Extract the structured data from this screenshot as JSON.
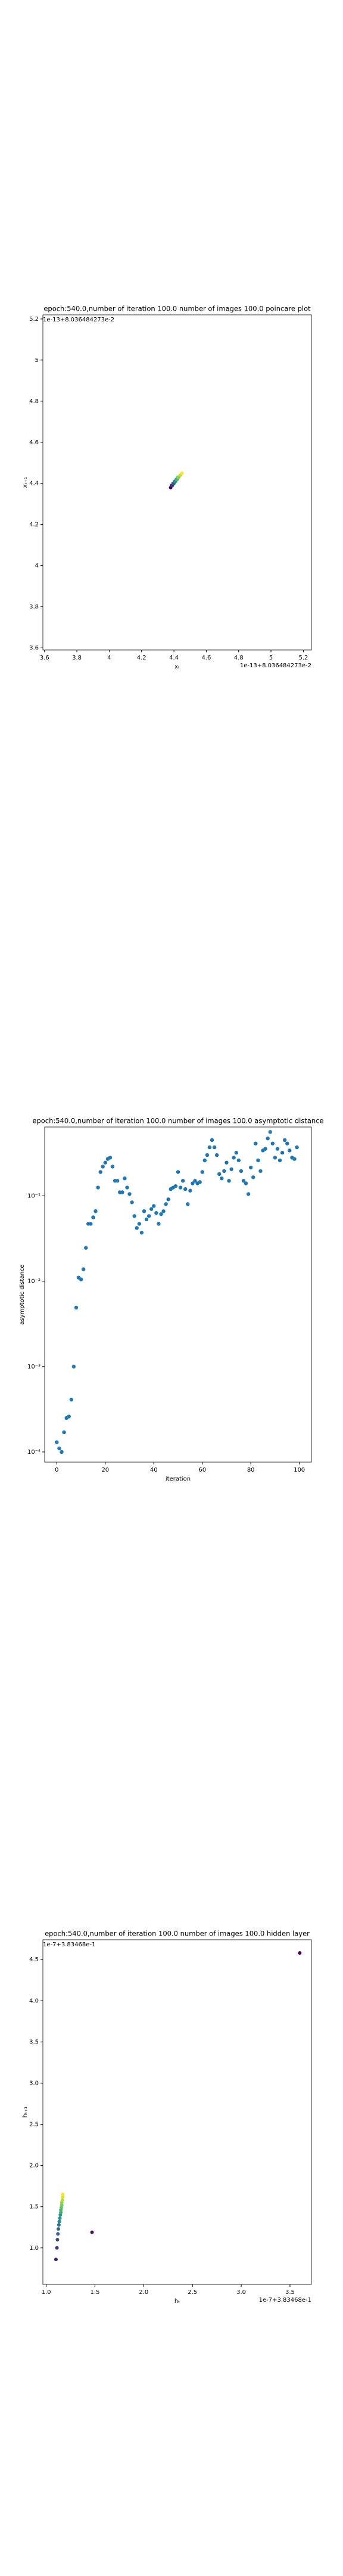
{
  "chart_data": [
    {
      "type": "scatter",
      "title": "epoch:540.0,number of iteration 100.0 number of images 100.0 poincare plot",
      "xlabel": "xₜ",
      "ylabel": "xₜ₊₁",
      "x_offset": "1e-13+8.036484273e-2",
      "y_offset": "1e-13+8.036484273e-2",
      "x": [
        4.38,
        4.385,
        4.39,
        4.395,
        4.4,
        4.405,
        4.41,
        4.415,
        4.42,
        4.425,
        4.43,
        4.44,
        4.45
      ],
      "values": [
        4.38,
        4.39,
        4.39,
        4.4,
        4.4,
        4.41,
        4.41,
        4.42,
        4.42,
        4.43,
        4.43,
        4.44,
        4.45
      ],
      "colormap": "viridis",
      "xlim": [
        3.59,
        5.25
      ],
      "ylim": [
        3.59,
        5.22
      ],
      "xticks": [
        3.6,
        3.8,
        4.0,
        4.2,
        4.4,
        4.6,
        4.8,
        5.0,
        5.2
      ],
      "yticks": [
        3.6,
        3.8,
        4.0,
        4.2,
        4.4,
        4.6,
        4.8,
        5.0,
        5.2
      ]
    },
    {
      "type": "scatter",
      "title": "epoch:540.0,number of iteration 100.0  number of images 100.0 asymptotic distance",
      "xlabel": "iteration",
      "ylabel": "asymptotic distance",
      "x": [
        0,
        1,
        2,
        3,
        4,
        5,
        6,
        7,
        8,
        9,
        10,
        11,
        12,
        13,
        14,
        15,
        16,
        17,
        18,
        19,
        20,
        21,
        22,
        23,
        24,
        25,
        26,
        27,
        28,
        29,
        30,
        31,
        32,
        33,
        34,
        35,
        36,
        37,
        38,
        39,
        40,
        41,
        42,
        43,
        44,
        45,
        46,
        47,
        48,
        49,
        50,
        51,
        52,
        53,
        54,
        55,
        56,
        57,
        58,
        59,
        60,
        61,
        62,
        63,
        64,
        65,
        66,
        67,
        68,
        69,
        70,
        71,
        72,
        73,
        74,
        75,
        76,
        77,
        78,
        79,
        80,
        81,
        82,
        83,
        84,
        85,
        86,
        87,
        88,
        89,
        90,
        91,
        92,
        93,
        94,
        95,
        96,
        97,
        98,
        99
      ],
      "values": [
        0.00013,
        0.00011,
        0.0001,
        0.00017,
        0.00025,
        0.00026,
        0.00041,
        0.001,
        0.0049,
        0.011,
        0.0105,
        0.0138,
        0.0246,
        0.047,
        0.047,
        0.056,
        0.066,
        0.125,
        0.19,
        0.22,
        0.245,
        0.27,
        0.28,
        0.22,
        0.15,
        0.15,
        0.11,
        0.11,
        0.16,
        0.125,
        0.105,
        0.084,
        0.058,
        0.042,
        0.047,
        0.037,
        0.066,
        0.053,
        0.058,
        0.07,
        0.076,
        0.063,
        0.047,
        0.061,
        0.066,
        0.08,
        0.091,
        0.12,
        0.125,
        0.13,
        0.19,
        0.125,
        0.15,
        0.12,
        0.08,
        0.115,
        0.14,
        0.15,
        0.14,
        0.145,
        0.19,
        0.26,
        0.3,
        0.37,
        0.45,
        0.37,
        0.3,
        0.18,
        0.16,
        0.195,
        0.245,
        0.15,
        0.205,
        0.28,
        0.32,
        0.26,
        0.195,
        0.15,
        0.14,
        0.105,
        0.215,
        0.165,
        0.41,
        0.26,
        0.195,
        0.34,
        0.355,
        0.47,
        0.56,
        0.41,
        0.28,
        0.355,
        0.26,
        0.32,
        0.45,
        0.41,
        0.34,
        0.28,
        0.27,
        0.37
      ],
      "color": "#1f77b4",
      "log_y": true,
      "xlim": [
        -5,
        105
      ],
      "ylim": [
        7.6e-05,
        0.64
      ],
      "xticks": [
        0,
        20,
        40,
        60,
        80,
        100
      ],
      "yticks": [
        {
          "value": 0.0001,
          "label": "10⁻⁴"
        },
        {
          "value": 0.001,
          "label": "10⁻³"
        },
        {
          "value": 0.01,
          "label": "10⁻²"
        },
        {
          "value": 0.1,
          "label": "10⁻¹"
        }
      ]
    },
    {
      "type": "scatter",
      "title": "epoch:540.0,number of iteration 100.0  number of images 100.0 hidden layer",
      "xlabel": "hₜ",
      "ylabel": "hₜ₊₁",
      "x_offset": "1e-7+3.83468e-1",
      "y_offset": "1e-7+3.83468e-1",
      "x": [
        3.6,
        1.47,
        1.1,
        1.11,
        1.115,
        1.12,
        1.125,
        1.13,
        1.135,
        1.14,
        1.145,
        1.15,
        1.15,
        1.155,
        1.16,
        1.16,
        1.165,
        1.17,
        1.17
      ],
      "values": [
        4.58,
        1.19,
        0.86,
        1.0,
        1.1,
        1.17,
        1.23,
        1.28,
        1.32,
        1.36,
        1.4,
        1.43,
        1.46,
        1.49,
        1.52,
        1.55,
        1.58,
        1.62,
        1.65
      ],
      "colormap": "viridis",
      "xlim": [
        0.966,
        3.72
      ],
      "ylim": [
        0.557,
        4.74
      ],
      "xticks": [
        {
          "value": 1,
          "label": "1.0"
        },
        1.5,
        {
          "value": 2,
          "label": "2.0"
        },
        2.5,
        {
          "value": 3,
          "label": "3.0"
        },
        3.5
      ],
      "yticks": [
        {
          "value": 1,
          "label": "1.0"
        },
        1.5,
        {
          "value": 2,
          "label": "2.0"
        },
        2.5,
        {
          "value": 3,
          "label": "3.0"
        },
        3.5,
        {
          "value": 4,
          "label": "4.0"
        },
        4.5
      ]
    }
  ]
}
